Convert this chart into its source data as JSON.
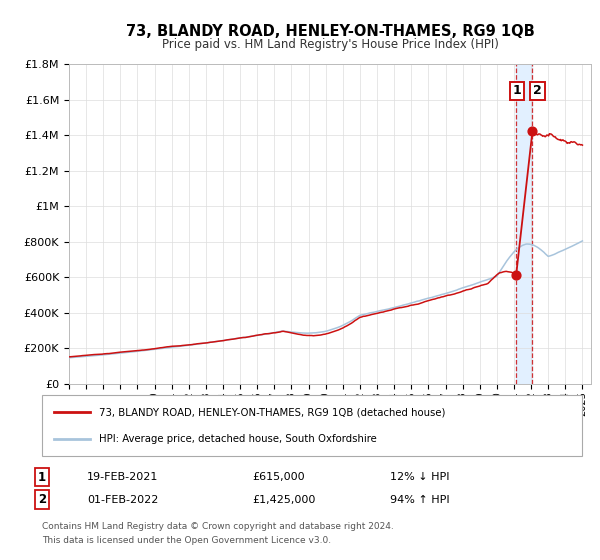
{
  "title": "73, BLANDY ROAD, HENLEY-ON-THAMES, RG9 1QB",
  "subtitle": "Price paid vs. HM Land Registry's House Price Index (HPI)",
  "ylim": [
    0,
    1800000
  ],
  "xlim_start": 1995.0,
  "xlim_end": 2025.5,
  "hpi_color": "#a8c4dc",
  "price_color": "#cc1111",
  "marker1_date": 2021.13,
  "marker1_price": 615000,
  "marker2_date": 2022.08,
  "marker2_price": 1425000,
  "highlight_start": 2021.13,
  "highlight_end": 2022.08,
  "legend_line1": "73, BLANDY ROAD, HENLEY-ON-THAMES, RG9 1QB (detached house)",
  "legend_line2": "HPI: Average price, detached house, South Oxfordshire",
  "annotation1_date": "19-FEB-2021",
  "annotation1_price": "£615,000",
  "annotation1_hpi": "12% ↓ HPI",
  "annotation2_date": "01-FEB-2022",
  "annotation2_price": "£1,425,000",
  "annotation2_hpi": "94% ↑ HPI",
  "footer1": "Contains HM Land Registry data © Crown copyright and database right 2024.",
  "footer2": "This data is licensed under the Open Government Licence v3.0.",
  "ytick_labels": [
    "£0",
    "£200K",
    "£400K",
    "£600K",
    "£800K",
    "£1M",
    "£1.2M",
    "£1.4M",
    "£1.6M",
    "£1.8M"
  ],
  "ytick_values": [
    0,
    200000,
    400000,
    600000,
    800000,
    1000000,
    1200000,
    1400000,
    1600000,
    1800000
  ],
  "background_color": "#ffffff",
  "grid_color": "#dddddd"
}
